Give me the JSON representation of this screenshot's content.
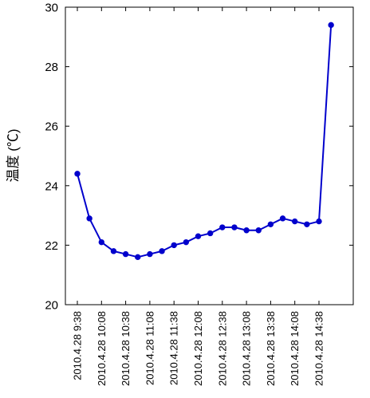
{
  "chart_data": {
    "type": "line",
    "title": "",
    "xlabel": "",
    "ylabel": "温度 (℃)",
    "ylim": [
      20,
      30
    ],
    "y_ticks": [
      20,
      22,
      24,
      26,
      28,
      30
    ],
    "x_tick_labels": [
      "2010.4.28 9:38",
      "2010.4.28 10:08",
      "2010.4.28 10:38",
      "2010.4.28 11:08",
      "2010.4.28 11:38",
      "2010.4.28 12:08",
      "2010.4.28 12:38",
      "2010.4.28 13:08",
      "2010.4.28 13:38",
      "2010.4.28 14:08",
      "2010.4.28 14:38"
    ],
    "x_tick_every": 2,
    "grid": false,
    "legend": "none",
    "colors": {
      "series": "#0000cc",
      "axis": "#000000"
    },
    "series": [
      {
        "values": [
          24.4,
          22.9,
          22.1,
          21.8,
          21.7,
          21.6,
          21.7,
          21.8,
          22.0,
          22.1,
          22.3,
          22.4,
          22.6,
          22.6,
          22.5,
          22.5,
          22.7,
          22.9,
          22.8,
          22.7,
          22.8,
          29.4
        ]
      }
    ]
  }
}
